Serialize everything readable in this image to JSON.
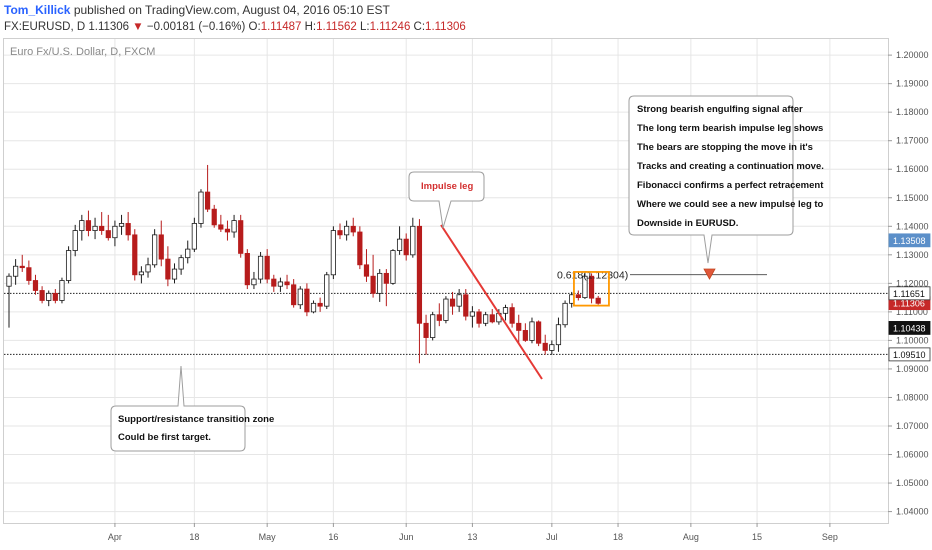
{
  "header": {
    "author": "Tom_Killick",
    "published": "published on TradingView.com, August 04, 2016 05:10 EST",
    "symbol": "FX:EURUSD, D",
    "last": "1.11306",
    "arrow": "▼",
    "change": "−0.00181 (−0.16%)",
    "o_label": "O:",
    "o_value": "1.11487",
    "h_label": "H:",
    "h_value": "1.11562",
    "l_label": "L:",
    "l_value": "1.11246",
    "c_label": "C:",
    "c_value": "1.11306"
  },
  "chart_title": "Euro Fx/U.S. Dollar, D, FXCM",
  "colors": {
    "up": "#ffffff",
    "up_border": "#1c1c1c",
    "down": "#b71c1c",
    "trendline": "#e53935",
    "box": "#ff9800",
    "grid": "#e6e6e6",
    "axis_text": "#555555",
    "price_blue": "#5b8fc9",
    "price_red": "#c62828",
    "price_black": "#111111"
  },
  "chart_data": {
    "type": "candlestick",
    "title": "Euro Fx/U.S. Dollar, D, FXCM",
    "symbol": "EURUSD",
    "timeframe": "D",
    "ylim": [
      1.036,
      1.206
    ],
    "y_ticks": [
      1.04,
      1.05,
      1.06,
      1.07,
      1.08,
      1.09,
      1.1,
      1.11,
      1.12,
      1.13,
      1.14,
      1.15,
      1.16,
      1.17,
      1.18,
      1.19,
      1.2
    ],
    "y_tick_labels": [
      "1.04000",
      "1.05000",
      "1.06000",
      "1.07000",
      "1.08000",
      "1.09000",
      "1.10000",
      "1.11000",
      "1.12000",
      "1.13000",
      "1.14000",
      "1.15000",
      "1.16000",
      "1.17000",
      "1.18000",
      "1.19000",
      "1.20000"
    ],
    "x_labels": [
      "Apr",
      "18",
      "May",
      "16",
      "Jun",
      "13",
      "Jul",
      "18",
      "Aug",
      "15",
      "Sep"
    ],
    "x_label_days": [
      16,
      28,
      39,
      49,
      60,
      70,
      82,
      92,
      103,
      113,
      124
    ],
    "price_labels": [
      {
        "value": 1.13508,
        "text": "1.13508",
        "style": "blue"
      },
      {
        "value": 1.11306,
        "text": "1.11306",
        "style": "red"
      },
      {
        "value": 1.11651,
        "text": "1.11651",
        "style": "outline"
      },
      {
        "value": 1.10438,
        "text": "1.10438",
        "style": "black"
      },
      {
        "value": 1.0951,
        "text": "1.09510",
        "style": "outline"
      }
    ],
    "horizontal_lines": [
      1.1165,
      1.0951
    ],
    "fib_level": {
      "label": "0.618(1.12304)",
      "value": 1.12304
    },
    "candles": [
      [
        1.119,
        1.1235,
        1.1045,
        1.1225
      ],
      [
        1.1225,
        1.1285,
        1.1195,
        1.126
      ],
      [
        1.126,
        1.13,
        1.124,
        1.1255
      ],
      [
        1.1255,
        1.128,
        1.1195,
        1.121
      ],
      [
        1.121,
        1.123,
        1.116,
        1.1175
      ],
      [
        1.1175,
        1.119,
        1.113,
        1.114
      ],
      [
        1.114,
        1.1175,
        1.112,
        1.1165
      ],
      [
        1.1165,
        1.118,
        1.113,
        1.114
      ],
      [
        1.114,
        1.122,
        1.113,
        1.121
      ],
      [
        1.121,
        1.133,
        1.12,
        1.1315
      ],
      [
        1.1315,
        1.1405,
        1.1295,
        1.1385
      ],
      [
        1.1385,
        1.144,
        1.135,
        1.142
      ],
      [
        1.142,
        1.1455,
        1.1365,
        1.1385
      ],
      [
        1.1385,
        1.143,
        1.1355,
        1.14
      ],
      [
        1.14,
        1.145,
        1.137,
        1.1385
      ],
      [
        1.1385,
        1.144,
        1.135,
        1.136
      ],
      [
        1.136,
        1.142,
        1.133,
        1.14
      ],
      [
        1.14,
        1.144,
        1.137,
        1.141
      ],
      [
        1.141,
        1.145,
        1.135,
        1.137
      ],
      [
        1.137,
        1.139,
        1.121,
        1.123
      ],
      [
        1.123,
        1.126,
        1.12,
        1.124
      ],
      [
        1.124,
        1.129,
        1.122,
        1.1265
      ],
      [
        1.1265,
        1.139,
        1.1255,
        1.137
      ],
      [
        1.137,
        1.142,
        1.126,
        1.1285
      ],
      [
        1.1285,
        1.133,
        1.119,
        1.1215
      ],
      [
        1.1215,
        1.127,
        1.12,
        1.125
      ],
      [
        1.125,
        1.13,
        1.123,
        1.129
      ],
      [
        1.129,
        1.135,
        1.127,
        1.132
      ],
      [
        1.132,
        1.143,
        1.131,
        1.141
      ],
      [
        1.141,
        1.153,
        1.1395,
        1.152
      ],
      [
        1.152,
        1.1615,
        1.145,
        1.146
      ],
      [
        1.146,
        1.1475,
        1.1395,
        1.1405
      ],
      [
        1.1405,
        1.144,
        1.138,
        1.139
      ],
      [
        1.139,
        1.142,
        1.135,
        1.138
      ],
      [
        1.138,
        1.144,
        1.136,
        1.142
      ],
      [
        1.142,
        1.144,
        1.129,
        1.1305
      ],
      [
        1.1305,
        1.132,
        1.118,
        1.1195
      ],
      [
        1.1195,
        1.124,
        1.118,
        1.1215
      ],
      [
        1.1215,
        1.131,
        1.12,
        1.1295
      ],
      [
        1.1295,
        1.132,
        1.12,
        1.1215
      ],
      [
        1.1215,
        1.123,
        1.117,
        1.119
      ],
      [
        1.119,
        1.122,
        1.117,
        1.1205
      ],
      [
        1.1205,
        1.123,
        1.118,
        1.1195
      ],
      [
        1.1195,
        1.1215,
        1.1115,
        1.1125
      ],
      [
        1.1125,
        1.119,
        1.111,
        1.118
      ],
      [
        1.118,
        1.12,
        1.1085,
        1.11
      ],
      [
        1.11,
        1.114,
        1.1095,
        1.113
      ],
      [
        1.113,
        1.115,
        1.11,
        1.112
      ],
      [
        1.112,
        1.124,
        1.111,
        1.123
      ],
      [
        1.123,
        1.14,
        1.1215,
        1.1385
      ],
      [
        1.1385,
        1.141,
        1.1355,
        1.137
      ],
      [
        1.137,
        1.142,
        1.135,
        1.14
      ],
      [
        1.14,
        1.143,
        1.1365,
        1.138
      ],
      [
        1.138,
        1.14,
        1.125,
        1.1265
      ],
      [
        1.1265,
        1.132,
        1.1205,
        1.1225
      ],
      [
        1.1225,
        1.13,
        1.115,
        1.1165
      ],
      [
        1.1165,
        1.125,
        1.1135,
        1.1235
      ],
      [
        1.1235,
        1.125,
        1.112,
        1.12
      ],
      [
        1.12,
        1.132,
        1.1195,
        1.1315
      ],
      [
        1.1315,
        1.14,
        1.13,
        1.1355
      ],
      [
        1.1355,
        1.1375,
        1.128,
        1.13
      ],
      [
        1.13,
        1.143,
        1.129,
        1.14
      ],
      [
        1.14,
        1.1425,
        1.092,
        1.106
      ],
      [
        1.106,
        1.109,
        1.095,
        1.101
      ],
      [
        1.101,
        1.11,
        1.1,
        1.109
      ],
      [
        1.109,
        1.113,
        1.105,
        1.107
      ],
      [
        1.107,
        1.1155,
        1.106,
        1.1145
      ],
      [
        1.1145,
        1.117,
        1.109,
        1.112
      ],
      [
        1.112,
        1.118,
        1.11,
        1.116
      ],
      [
        1.116,
        1.118,
        1.107,
        1.1085
      ],
      [
        1.1085,
        1.112,
        1.1045,
        1.11
      ],
      [
        1.11,
        1.111,
        1.1045,
        1.106
      ],
      [
        1.106,
        1.11,
        1.105,
        1.109
      ],
      [
        1.109,
        1.111,
        1.106,
        1.1065
      ],
      [
        1.1065,
        1.111,
        1.1055,
        1.1095
      ],
      [
        1.1095,
        1.1125,
        1.107,
        1.1115
      ],
      [
        1.1115,
        1.113,
        1.1045,
        1.106
      ],
      [
        1.106,
        1.109,
        1.099,
        1.1035
      ],
      [
        1.1035,
        1.106,
        1.0995,
        1.1
      ],
      [
        1.1,
        1.108,
        1.099,
        1.1065
      ],
      [
        1.1065,
        1.107,
        1.098,
        1.099
      ],
      [
        1.099,
        1.102,
        1.095,
        1.0965
      ],
      [
        1.0965,
        1.1,
        1.095,
        1.0985
      ],
      [
        1.0985,
        1.108,
        1.096,
        1.1055
      ],
      [
        1.1055,
        1.114,
        1.1045,
        1.113
      ],
      [
        1.113,
        1.117,
        1.1115,
        1.116
      ],
      [
        1.116,
        1.1175,
        1.114,
        1.115
      ],
      [
        1.115,
        1.1235,
        1.1145,
        1.1225
      ],
      [
        1.1225,
        1.1235,
        1.113,
        1.1148
      ],
      [
        1.1148,
        1.1156,
        1.1125,
        1.113
      ]
    ]
  },
  "annotations": {
    "impulse_label": "Impulse leg",
    "main_lines": [
      "Strong bearish engulfing signal after",
      "The long term bearish impulse leg shows",
      "The bears are stopping the move in it's",
      "Tracks and creating a continuation move.",
      "Fibonacci confirms a perfect retracement",
      "Where we could see a new impulse leg to",
      "Downside in EURUSD."
    ],
    "support_lines": [
      "Support/resistance transition zone",
      "Could be first target."
    ]
  }
}
